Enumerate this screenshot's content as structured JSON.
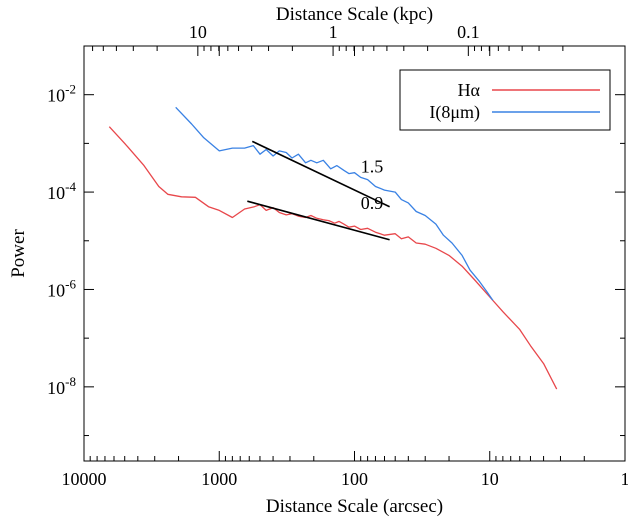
{
  "chart_data": {
    "type": "line",
    "title": "",
    "xlabel": "Distance Scale (arcsec)",
    "x2label": "Distance Scale (kpc)",
    "ylabel": "Power",
    "x_scale": "log",
    "x_reversed": true,
    "y_scale": "log",
    "xlim": [
      10000,
      1
    ],
    "ylim": [
      3e-10,
      0.1
    ],
    "x_ticks": [
      {
        "value": 10000,
        "label": "10000"
      },
      {
        "value": 1000,
        "label": "1000"
      },
      {
        "value": 100,
        "label": "100"
      },
      {
        "value": 10,
        "label": "10"
      },
      {
        "value": 1,
        "label": "1"
      }
    ],
    "y_ticks": [
      {
        "value": 0.01,
        "base": "10",
        "exp": "-2"
      },
      {
        "value": 0.0001,
        "base": "10",
        "exp": "-4"
      },
      {
        "value": 1e-06,
        "base": "10",
        "exp": "-6"
      },
      {
        "value": 1e-08,
        "base": "10",
        "exp": "-8"
      }
    ],
    "x2_ticks": [
      {
        "arcsec": 1440,
        "label": "10"
      },
      {
        "arcsec": 144,
        "label": "1"
      },
      {
        "arcsec": 14.4,
        "label": "0.1"
      }
    ],
    "grid": false,
    "legend_position": "top-right",
    "series": [
      {
        "name": "Hα",
        "color": "#e8474b",
        "points": [
          [
            6500,
            0.0022
          ],
          [
            5000,
            0.001
          ],
          [
            3600,
            0.00035
          ],
          [
            2800,
            0.00013
          ],
          [
            2400,
            9e-05
          ],
          [
            1900,
            8e-05
          ],
          [
            1500,
            7.8e-05
          ],
          [
            1200,
            5e-05
          ],
          [
            1000,
            4.2e-05
          ],
          [
            800,
            3e-05
          ],
          [
            650,
            4.5e-05
          ],
          [
            550,
            5e-05
          ],
          [
            500,
            5.5e-05
          ],
          [
            450,
            4.2e-05
          ],
          [
            400,
            4.8e-05
          ],
          [
            360,
            3.8e-05
          ],
          [
            320,
            3.4e-05
          ],
          [
            290,
            3.6e-05
          ],
          [
            260,
            3.2e-05
          ],
          [
            230,
            3e-05
          ],
          [
            210,
            3.3e-05
          ],
          [
            190,
            2.9e-05
          ],
          [
            170,
            2.7e-05
          ],
          [
            155,
            2.6e-05
          ],
          [
            140,
            2.3e-05
          ],
          [
            130,
            2.5e-05
          ],
          [
            120,
            2.2e-05
          ],
          [
            110,
            1.9e-05
          ],
          [
            100,
            2e-05
          ],
          [
            90,
            1.7e-05
          ],
          [
            80,
            1.8e-05
          ],
          [
            70,
            1.5e-05
          ],
          [
            60,
            1.3e-05
          ],
          [
            50,
            1.4e-05
          ],
          [
            45,
            1.1e-05
          ],
          [
            40,
            1.2e-05
          ],
          [
            35,
            9e-06
          ],
          [
            30,
            8.5e-06
          ],
          [
            25,
            7e-06
          ],
          [
            20,
            5e-06
          ],
          [
            16,
            3e-06
          ],
          [
            13,
            1.6e-06
          ],
          [
            10,
            7e-07
          ],
          [
            8,
            3.5e-07
          ],
          [
            6,
            1.5e-07
          ],
          [
            5,
            7e-08
          ],
          [
            4,
            3e-08
          ],
          [
            3.2,
            9e-09
          ]
        ]
      },
      {
        "name": "I(8μm)",
        "color": "#3a82e4",
        "points": [
          [
            2100,
            0.0055
          ],
          [
            1600,
            0.0025
          ],
          [
            1300,
            0.0013
          ],
          [
            1000,
            0.0007
          ],
          [
            800,
            0.0008
          ],
          [
            650,
            0.0008
          ],
          [
            560,
            0.0009
          ],
          [
            500,
            0.0006
          ],
          [
            450,
            0.00075
          ],
          [
            400,
            0.00055
          ],
          [
            360,
            0.0007
          ],
          [
            320,
            0.00065
          ],
          [
            290,
            0.0005
          ],
          [
            260,
            0.0006
          ],
          [
            230,
            0.0004
          ],
          [
            210,
            0.00045
          ],
          [
            190,
            0.0004
          ],
          [
            170,
            0.00045
          ],
          [
            150,
            0.0003
          ],
          [
            135,
            0.00035
          ],
          [
            120,
            0.00028
          ],
          [
            110,
            0.00024
          ],
          [
            100,
            0.00025
          ],
          [
            90,
            0.0002
          ],
          [
            80,
            0.00018
          ],
          [
            70,
            0.00013
          ],
          [
            60,
            0.00011
          ],
          [
            50,
            0.0001
          ],
          [
            45,
            7e-05
          ],
          [
            40,
            6e-05
          ],
          [
            35,
            4e-05
          ],
          [
            30,
            3.3e-05
          ],
          [
            25,
            2.2e-05
          ],
          [
            22,
            1.3e-05
          ],
          [
            19,
            9e-06
          ],
          [
            16,
            5e-06
          ],
          [
            14,
            2.5e-06
          ],
          [
            12,
            1.5e-06
          ],
          [
            10.5,
            9e-07
          ],
          [
            9.5,
            6e-07
          ]
        ]
      }
    ],
    "fits": [
      {
        "label": "1.5",
        "from": [
          570,
          0.0011
        ],
        "to": [
          55,
          5e-05
        ],
        "label_at": [
          90,
          0.00025
        ]
      },
      {
        "label": "0.9",
        "from": [
          620,
          6.5e-05
        ],
        "to": [
          55,
          1.05e-05
        ],
        "label_at": [
          90,
          4.5e-05
        ]
      }
    ]
  }
}
